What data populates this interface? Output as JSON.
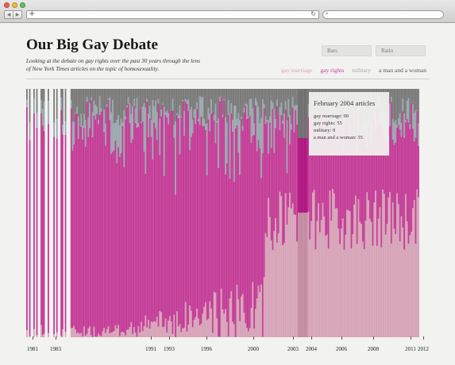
{
  "browser": {
    "add_tab": "+",
    "reload": "↻",
    "search_icon": "⌕",
    "colors": {
      "close": "#ee5f57",
      "minimize": "#f3bc2e",
      "zoom": "#5fc454"
    }
  },
  "header": {
    "title": "Our Big Gay Debate",
    "subtitle": "Looking at the debate on gay rights over the past 30 years through the lens of New York Times articles on the topic of homosexuality."
  },
  "controls": {
    "bars": "Bars",
    "ratio": "Ratio"
  },
  "legend": [
    {
      "label": "gay marriage",
      "color": "#d7a3b8"
    },
    {
      "label": "gay rights",
      "color": "#c43c97"
    },
    {
      "label": "military",
      "color": "#9aa7ad"
    },
    {
      "label": "a man and a woman",
      "color": "#555555"
    }
  ],
  "tooltip": {
    "title": "February 2004 articles",
    "rows": [
      "gay marriage: 90",
      "gay rights: 55",
      "military: 0",
      "a man and a woman: 35"
    ]
  },
  "axis": {
    "years": [
      "1981",
      "1983",
      "1991",
      "1993",
      "1996",
      "2000",
      "2003",
      "2004",
      "2006",
      "2008",
      "2011",
      "2012"
    ]
  },
  "chart_data": {
    "type": "bar",
    "categories": [
      "gay marriage",
      "gay rights",
      "military",
      "a man and a woman"
    ],
    "highlight": {
      "label": "February 2004",
      "values": [
        90,
        55,
        0,
        35
      ]
    }
  }
}
